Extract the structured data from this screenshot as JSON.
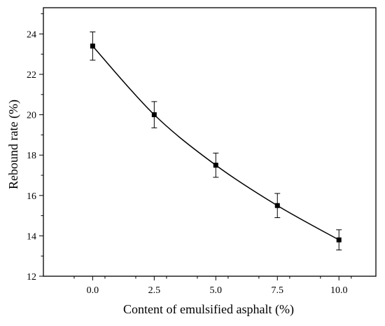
{
  "chart_data": {
    "type": "line",
    "xlabel": "Content of emulsified asphalt (%)",
    "ylabel": "Rebound rate (%)",
    "xlim": [
      -2.0,
      11.5
    ],
    "ylim": [
      12,
      25.3
    ],
    "xticks": [
      "0.0",
      "2.5",
      "5.0",
      "7.5",
      "10.0"
    ],
    "yticks": [
      "12",
      "14",
      "16",
      "18",
      "20",
      "22",
      "24"
    ],
    "xtick_values": [
      0,
      2.5,
      5,
      7.5,
      10
    ],
    "ytick_values": [
      12,
      14,
      16,
      18,
      20,
      22,
      24
    ],
    "grid": false,
    "marker": "square",
    "line_color": "#000000",
    "series": [
      {
        "x": [
          0,
          2.5,
          5,
          7.5,
          10
        ],
        "y": [
          23.4,
          20.0,
          17.5,
          15.5,
          13.8
        ],
        "error": [
          0.7,
          0.65,
          0.6,
          0.6,
          0.5
        ]
      }
    ]
  }
}
